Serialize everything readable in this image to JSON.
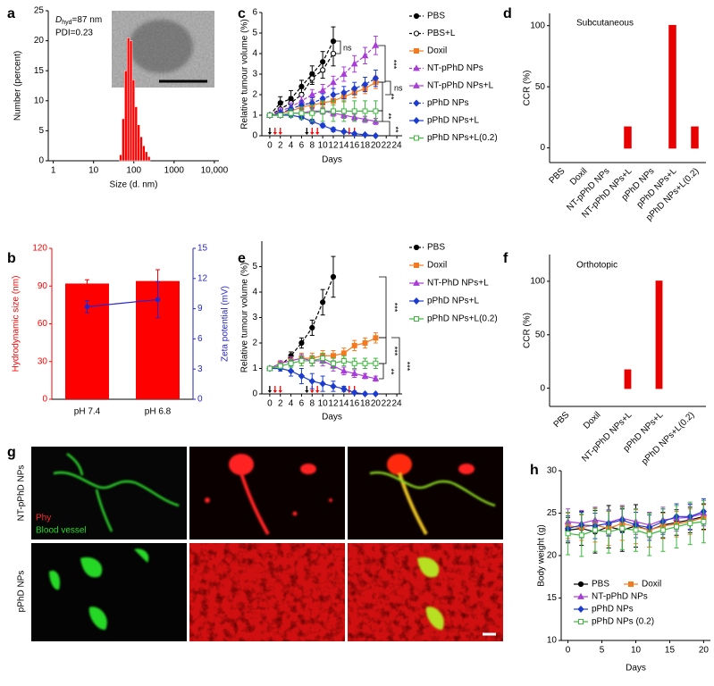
{
  "chart_data": [
    {
      "panel": "a",
      "type": "histogram",
      "size_label": {
        "symbol": "D",
        "subscript": "hyd",
        "text": "=87 nm"
      },
      "pdi_label": "PDI=0.23",
      "xlabel": "Size (d. nm)",
      "ylabel": "Number (percent)",
      "xscale": "log",
      "xlim": [
        0.75,
        13000
      ],
      "xticks": [
        1,
        10,
        100,
        1000,
        {
          "value": 10000,
          "label": "10,000"
        }
      ],
      "ylim": [
        0,
        25
      ],
      "yticks": [
        0,
        5,
        10,
        15,
        20,
        25
      ],
      "bins": [
        43.8,
        50.7,
        58.8,
        68.1,
        78.8,
        91.3,
        105.7,
        122.4,
        141.8,
        164.2,
        190.1,
        220.2,
        255.0
      ],
      "values": [
        1,
        7,
        15,
        20.5,
        20,
        13.5,
        9,
        6,
        4,
        2.5,
        1.5,
        0.7
      ],
      "color": "#ff0000"
    },
    {
      "panel": "b",
      "type": "bar",
      "categories": [
        "pH 7.4",
        "pH 6.8"
      ],
      "ylabel": "Hydrodynamic size (nm)",
      "y2label": "Zeta potential (mV)",
      "ylim": [
        0,
        120
      ],
      "yticks": [
        0,
        30,
        60,
        90,
        120
      ],
      "y2lim": [
        0,
        15
      ],
      "y2ticks": [
        0,
        3,
        6,
        9,
        12,
        15
      ],
      "series": [
        {
          "values": [
            92,
            94
          ],
          "errors": [
            3,
            9
          ],
          "color": "#ff0000"
        },
        {
          "type": "line",
          "axis": "y2",
          "values": [
            9.2,
            9.9
          ],
          "errors": [
            0.6,
            1.8
          ],
          "color": "#2626c8"
        }
      ]
    },
    {
      "panel": "c",
      "type": "line",
      "xlabel": "Days",
      "ylabel": "Relative tumour volume (%)",
      "x": [
        0,
        2,
        4,
        6,
        8,
        10,
        12,
        14,
        16,
        18,
        20
      ],
      "xlim": [
        -1.5,
        25
      ],
      "xticks": [
        0,
        2,
        4,
        6,
        8,
        10,
        12,
        14,
        16,
        18,
        20,
        22,
        24
      ],
      "ylim": [
        0,
        6
      ],
      "yticks": [
        0,
        1,
        2,
        3,
        4,
        5,
        6
      ],
      "dose_days": [
        0,
        7,
        14
      ],
      "laser_days": [
        1,
        2,
        8,
        9,
        15,
        16
      ],
      "dose_color": "#000000",
      "laser_color": "#ff0000",
      "annotations": [
        "ns",
        "***",
        "ns",
        "**",
        "**",
        "**"
      ],
      "series": [
        {
          "name": "PBS",
          "color": "#000000",
          "marker": "circle",
          "dash": true,
          "values": [
            1,
            1.6,
            1.8,
            2.4,
            3.0,
            3.6,
            4.6,
            null,
            null,
            null,
            null
          ],
          "errors": [
            0.05,
            0.3,
            0.4,
            0.3,
            0.4,
            0.5,
            0.7,
            null,
            null,
            null,
            null
          ]
        },
        {
          "name": "PBS+L",
          "color": "#000000",
          "marker": "open-circle",
          "dash": true,
          "values": [
            1,
            1.3,
            1.6,
            2.0,
            2.8,
            3.2,
            4.0,
            null,
            null,
            null,
            null
          ],
          "errors": [
            0.05,
            0.2,
            0.3,
            0.3,
            0.3,
            0.4,
            0.6,
            null,
            null,
            null,
            null
          ]
        },
        {
          "name": "Doxil",
          "color": "#f47a20",
          "marker": "square",
          "dash": false,
          "values": [
            1,
            1.1,
            1.2,
            1.4,
            1.5,
            1.6,
            1.7,
            1.9,
            2.1,
            2.3,
            2.6
          ],
          "errors": [
            0.05,
            0.1,
            0.15,
            0.15,
            0.2,
            0.2,
            0.2,
            0.25,
            0.25,
            0.25,
            0.3
          ]
        },
        {
          "name": "NT-pPhD NPs",
          "color": "#a83cd8",
          "marker": "triangle",
          "dash": true,
          "values": [
            1,
            1.2,
            1.4,
            1.7,
            2.0,
            2.2,
            2.6,
            3.0,
            3.5,
            3.9,
            4.4
          ],
          "errors": [
            0.05,
            0.15,
            0.2,
            0.2,
            0.25,
            0.3,
            0.3,
            0.35,
            0.4,
            0.4,
            0.45
          ]
        },
        {
          "name": "NT-pPhD NPs+L",
          "color": "#a83cd8",
          "marker": "triangle",
          "dash": false,
          "values": [
            1,
            1.0,
            1.1,
            1.1,
            1.2,
            1.2,
            1.1,
            1.0,
            0.9,
            0.8,
            0.7
          ],
          "errors": [
            0.05,
            0.1,
            0.1,
            0.1,
            0.15,
            0.15,
            0.15,
            0.15,
            0.15,
            0.15,
            0.15
          ]
        },
        {
          "name": "pPhD NPs",
          "color": "#1c3cd0",
          "marker": "diamond",
          "dash": true,
          "values": [
            1,
            1.1,
            1.3,
            1.5,
            1.6,
            1.8,
            2.0,
            2.1,
            2.3,
            2.5,
            2.8
          ],
          "errors": [
            0.05,
            0.15,
            0.2,
            0.2,
            0.25,
            0.25,
            0.3,
            0.3,
            0.3,
            0.35,
            0.4
          ]
        },
        {
          "name": "pPhD NPs+L",
          "color": "#1c3cd0",
          "marker": "diamond",
          "dash": false,
          "values": [
            1,
            1.0,
            1.0,
            0.9,
            0.7,
            0.5,
            0.3,
            0.2,
            0.1,
            0.05,
            0.0
          ],
          "errors": [
            0.05,
            0.1,
            0.1,
            0.1,
            0.1,
            0.1,
            0.1,
            0.05,
            0.05,
            0.02,
            0.0
          ]
        },
        {
          "name": "pPhD NPs+L(0.2)",
          "color": "#3cb83c",
          "marker": "open-square",
          "dash": false,
          "values": [
            1,
            1.0,
            1.1,
            1.1,
            1.1,
            1.2,
            1.2,
            1.2,
            1.2,
            1.2,
            1.2
          ],
          "errors": [
            0.05,
            0.1,
            0.2,
            0.3,
            0.4,
            0.5,
            0.5,
            0.5,
            0.5,
            0.5,
            0.5
          ]
        }
      ]
    },
    {
      "panel": "d",
      "type": "bar",
      "title": "Subcutaneous",
      "ylabel": "CCR (%)",
      "categories": [
        "PBS",
        "Doxil",
        "NT-pPhD NPs",
        "NT-pPhD NPs+L",
        "pPhD NPs",
        "pPhD NPs+L",
        "pPhD NPs+L(0.2)"
      ],
      "values": [
        0,
        0,
        0,
        17,
        0,
        100,
        17
      ],
      "color": "#e80000",
      "ylim": [
        -12,
        110
      ],
      "yticks": [
        0,
        50,
        100
      ]
    },
    {
      "panel": "e",
      "type": "line",
      "xlabel": "Days",
      "ylabel": "Relative tumour volume (%)",
      "x": [
        0,
        2,
        4,
        6,
        8,
        10,
        12,
        14,
        16,
        18,
        20
      ],
      "xlim": [
        -1.5,
        25
      ],
      "xticks": [
        0,
        2,
        4,
        6,
        8,
        10,
        12,
        14,
        16,
        18,
        20,
        22,
        24
      ],
      "ylim": [
        0,
        6
      ],
      "yticks": [
        0,
        1,
        2,
        3,
        4,
        5
      ],
      "dose_days": [
        0,
        7,
        14
      ],
      "laser_days": [
        1,
        2,
        8,
        9,
        15,
        16
      ],
      "dose_color": "#000000",
      "laser_color": "#ff0000",
      "annotations": [
        "***",
        "***",
        "**",
        "***"
      ],
      "series": [
        {
          "name": "PBS",
          "color": "#000000",
          "marker": "circle",
          "dash": true,
          "values": [
            1,
            1.1,
            1.5,
            2.0,
            2.6,
            3.6,
            4.6,
            null,
            null,
            null,
            null
          ],
          "errors": [
            0.05,
            0.1,
            0.15,
            0.2,
            0.3,
            0.5,
            0.8,
            null,
            null,
            null,
            null
          ]
        },
        {
          "name": "Doxil",
          "color": "#f47a20",
          "marker": "square",
          "dash": false,
          "values": [
            1,
            1.2,
            1.3,
            1.4,
            1.4,
            1.5,
            1.5,
            1.6,
            1.9,
            2.0,
            2.2
          ],
          "errors": [
            0.05,
            0.1,
            0.15,
            0.2,
            0.2,
            0.2,
            0.2,
            0.2,
            0.2,
            0.2,
            0.2
          ]
        },
        {
          "name": "NT-PhD NPs+L",
          "color": "#a83cd8",
          "marker": "triangle",
          "dash": false,
          "values": [
            1,
            1.2,
            1.3,
            1.4,
            1.3,
            1.3,
            1.1,
            0.9,
            0.8,
            0.7,
            0.6
          ],
          "errors": [
            0.05,
            0.1,
            0.15,
            0.15,
            0.2,
            0.2,
            0.2,
            0.15,
            0.15,
            0.1,
            0.1
          ]
        },
        {
          "name": "pPhD NPs+L",
          "color": "#1c3cd0",
          "marker": "diamond",
          "dash": false,
          "values": [
            1,
            1.0,
            0.9,
            0.7,
            0.5,
            0.4,
            0.3,
            0.2,
            0.05,
            0.0,
            0.0
          ],
          "errors": [
            0.05,
            0.1,
            0.2,
            0.3,
            0.3,
            0.3,
            0.2,
            0.1,
            0.05,
            0.0,
            0.0
          ]
        },
        {
          "name": "pPhD NPs+L(0.2)",
          "color": "#3cb83c",
          "marker": "open-square",
          "dash": false,
          "values": [
            1,
            1.1,
            1.2,
            1.3,
            1.3,
            1.4,
            1.2,
            1.3,
            1.2,
            1.2,
            1.2
          ],
          "errors": [
            0.05,
            0.1,
            0.15,
            0.2,
            0.2,
            0.2,
            0.2,
            0.2,
            0.2,
            0.2,
            0.2
          ]
        }
      ]
    },
    {
      "panel": "f",
      "type": "bar",
      "title": "Orthotopic",
      "ylabel": "CCR (%)",
      "categories": [
        "PBS",
        "Doxil",
        "NT-pPhD NPs+L",
        "pPhD NPs+L",
        "pPhD NPs+L(0.2)"
      ],
      "values": [
        0,
        0,
        17,
        100,
        0
      ],
      "color": "#e80000",
      "ylim": [
        -17,
        125
      ],
      "yticks": [
        0,
        50,
        100
      ]
    },
    {
      "panel": "h",
      "type": "line",
      "xlabel": "Days",
      "ylabel": "Body weight (g)",
      "x": [
        0,
        2,
        4,
        6,
        8,
        10,
        12,
        14,
        16,
        18,
        20
      ],
      "xlim": [
        -1,
        21
      ],
      "xticks": [
        0,
        5,
        10,
        15,
        20
      ],
      "ylim": [
        10,
        30
      ],
      "yticks": [
        10,
        15,
        20,
        25,
        30
      ],
      "series": [
        {
          "name": "PBS",
          "color": "#000000",
          "marker": "circle",
          "dash": false,
          "values": [
            23.0,
            23.2,
            22.8,
            23.4,
            23.0,
            23.5,
            23.0,
            23.6,
            23.9,
            24.2,
            24.6
          ],
          "errors": [
            1.5,
            2,
            2.5,
            2.5,
            2.5,
            2.5,
            2,
            1.5,
            1.5,
            1.5,
            1.5
          ]
        },
        {
          "name": "Doxil",
          "color": "#f47a20",
          "marker": "square",
          "dash": false,
          "values": [
            23.5,
            23.3,
            23.6,
            23.2,
            23.8,
            23.4,
            23.0,
            23.5,
            23.7,
            24.0,
            24.5
          ],
          "errors": [
            1.5,
            1.5,
            2,
            2,
            2,
            2,
            2,
            1.5,
            1.5,
            1.5,
            1.5
          ]
        },
        {
          "name": "NT-pPhD NPs",
          "color": "#a83cd8",
          "marker": "triangle",
          "dash": false,
          "values": [
            24.0,
            23.8,
            24.2,
            23.9,
            24.4,
            24.0,
            23.6,
            24.2,
            24.4,
            24.5,
            25.0
          ],
          "errors": [
            1.5,
            1.5,
            1.5,
            1.5,
            1.5,
            1.5,
            1.5,
            1.5,
            1.5,
            1.5,
            1.5
          ]
        },
        {
          "name": "pPhD NPs",
          "color": "#1c3cd0",
          "marker": "diamond",
          "dash": false,
          "values": [
            23.2,
            23.6,
            23.5,
            23.8,
            24.2,
            23.6,
            23.3,
            24.0,
            24.6,
            24.6,
            25.2
          ],
          "errors": [
            1.5,
            1.5,
            1.5,
            1.5,
            1.5,
            1.5,
            1.5,
            1.5,
            1.5,
            1.5,
            1.5
          ]
        },
        {
          "name": "pPhD NPs (0.2)",
          "color": "#3cb83c",
          "marker": "open-square",
          "dash": false,
          "values": [
            22.6,
            22.4,
            23.0,
            22.8,
            23.2,
            23.0,
            22.5,
            23.0,
            23.4,
            23.8,
            24.0
          ],
          "errors": [
            2.5,
            2.5,
            2.5,
            2.5,
            2.5,
            2.5,
            2.5,
            2.5,
            2.5,
            2.5,
            2.5
          ]
        }
      ]
    }
  ],
  "figure_g": {
    "panel": "g",
    "rows": [
      "NT-pPhD NPs",
      "pPhD NPs"
    ],
    "channels": [
      {
        "name": "Phy",
        "color": "#ff2a2a"
      },
      {
        "name": "Blood vessel",
        "color": "#22dd22"
      }
    ]
  }
}
